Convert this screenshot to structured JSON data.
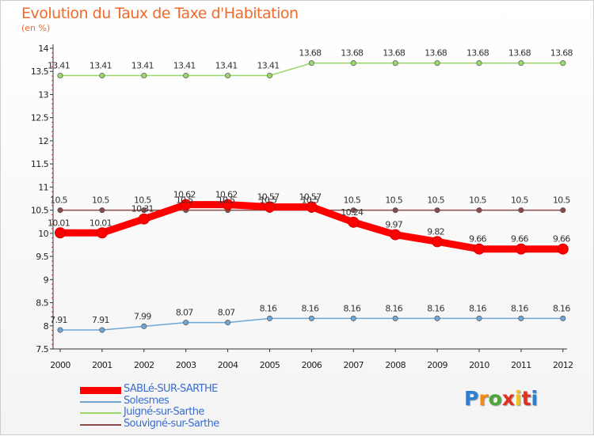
{
  "chart_data": {
    "type": "line",
    "title": "Evolution du Taux de Taxe d'Habitation",
    "subtitle": "(en %)",
    "x": [
      "2000",
      "2001",
      "2002",
      "2003",
      "2004",
      "2005",
      "2006",
      "2007",
      "2008",
      "2009",
      "2010",
      "2011",
      "2012"
    ],
    "ylim": [
      7.5,
      14
    ],
    "yticks": [
      "7.5",
      "8",
      "8.5",
      "9",
      "9.5",
      "10",
      "10.5",
      "11",
      "11.5",
      "12",
      "12.5",
      "13",
      "13.5",
      "14"
    ],
    "grid": false,
    "legend_position": "bottom-left",
    "series": [
      {
        "name": "SABLé-SUR-SARTHE",
        "color": "#ff0000",
        "values": [
          10.01,
          10.01,
          10.31,
          10.62,
          10.62,
          10.57,
          10.57,
          10.24,
          9.97,
          9.82,
          9.66,
          9.66,
          9.66
        ],
        "labels": [
          "10.01",
          "10.01",
          "10.31",
          "10.62",
          "10.62",
          "10.57",
          "10.57",
          "10.24",
          "9.97",
          "9.82",
          "9.66",
          "9.66",
          "9.66"
        ]
      },
      {
        "name": "Solesmes",
        "color": "#6fa6d6",
        "values": [
          7.91,
          7.91,
          7.99,
          8.07,
          8.07,
          8.16,
          8.16,
          8.16,
          8.16,
          8.16,
          8.16,
          8.16,
          8.16
        ],
        "labels": [
          "7.91",
          "7.91",
          "7.99",
          "8.07",
          "8.07",
          "8.16",
          "8.16",
          "8.16",
          "8.16",
          "8.16",
          "8.16",
          "8.16",
          "8.16"
        ]
      },
      {
        "name": "Juigné-sur-Sarthe",
        "color": "#9ad86a",
        "values": [
          13.41,
          13.41,
          13.41,
          13.41,
          13.41,
          13.41,
          13.68,
          13.68,
          13.68,
          13.68,
          13.68,
          13.68,
          13.68
        ],
        "labels": [
          "13.41",
          "13.41",
          "13.41",
          "13.41",
          "13.41",
          "13.41",
          "13.68",
          "13.68",
          "13.68",
          "13.68",
          "13.68",
          "13.68",
          "13.68"
        ]
      },
      {
        "name": "Souvigné-sur-Sarthe",
        "color": "#8a4a4a",
        "values": [
          10.5,
          10.5,
          10.5,
          10.5,
          10.5,
          10.5,
          10.5,
          10.5,
          10.5,
          10.5,
          10.5,
          10.5,
          10.5
        ],
        "labels": [
          "10.5",
          "10.5",
          "10.5",
          "10.5",
          "10.5",
          "10.5",
          "10.5",
          "10.5",
          "10.5",
          "10.5",
          "10.5",
          "10.5",
          "10.5"
        ]
      }
    ]
  },
  "logo": {
    "letters": [
      "P",
      "r",
      "o",
      "x",
      "i",
      "t",
      "i"
    ],
    "colors": [
      "#2f7fd0",
      "#f08c1a",
      "#4aa83a",
      "#e03020",
      "#f2c21a",
      "#e03020",
      "#2f7fd0"
    ]
  }
}
